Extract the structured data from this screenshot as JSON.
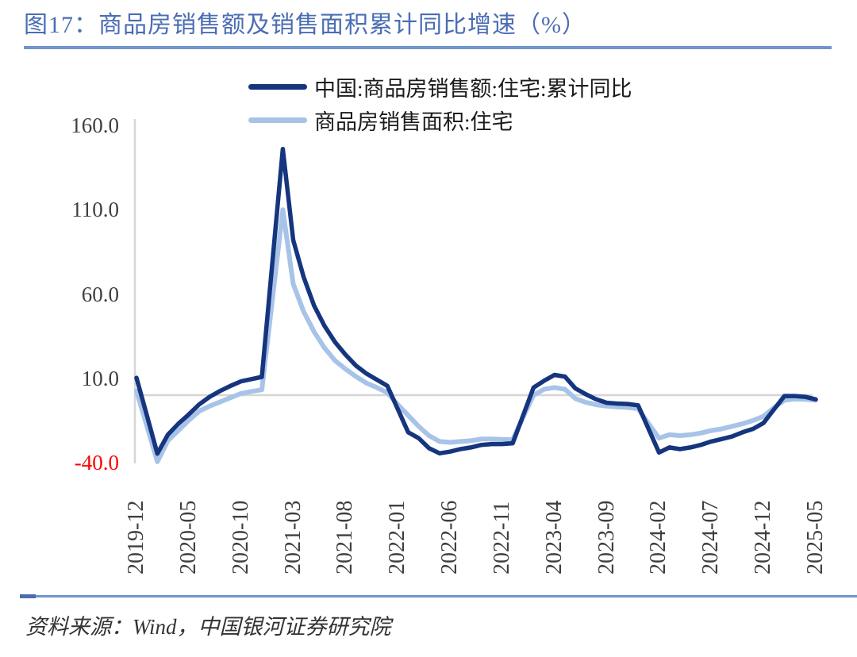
{
  "figure": {
    "title": "图17：商品房销售额及销售面积累计同比增速（%）",
    "source_label": "资料来源：Wind，中国银河证券研究院"
  },
  "colors": {
    "title_blue": "#4a6db3",
    "rule_blue": "#7094cc",
    "series_dark": "#15357e",
    "series_light": "#a8c3e8",
    "axis_gray": "#d6d6d6",
    "tick_text": "#3f3f3f",
    "negative_tick_red": "#fe0000"
  },
  "chart_data": {
    "type": "line",
    "title": "商品房销售额及销售面积累计同比增速（%）",
    "xlabel": "",
    "ylabel": "",
    "ylim": [
      -40,
      160
    ],
    "grid": "zero-line-only",
    "legend_position": "top-center",
    "x": [
      "2019-12",
      "2020-01",
      "2020-02",
      "2020-03",
      "2020-04",
      "2020-05",
      "2020-06",
      "2020-07",
      "2020-08",
      "2020-09",
      "2020-10",
      "2020-11",
      "2020-12",
      "2021-01",
      "2021-02",
      "2021-03",
      "2021-04",
      "2021-05",
      "2021-06",
      "2021-07",
      "2021-08",
      "2021-09",
      "2021-10",
      "2021-11",
      "2021-12",
      "2022-01",
      "2022-02",
      "2022-03",
      "2022-04",
      "2022-05",
      "2022-06",
      "2022-07",
      "2022-08",
      "2022-09",
      "2022-10",
      "2022-11",
      "2022-12",
      "2023-01",
      "2023-02",
      "2023-03",
      "2023-04",
      "2023-05",
      "2023-06",
      "2023-07",
      "2023-08",
      "2023-09",
      "2023-10",
      "2023-11",
      "2023-12",
      "2024-01",
      "2024-02",
      "2024-03",
      "2024-04",
      "2024-05",
      "2024-06",
      "2024-07",
      "2024-08",
      "2024-09",
      "2024-10",
      "2024-11",
      "2024-12",
      "2025-01",
      "2025-02",
      "2025-03",
      "2025-04",
      "2025-05"
    ],
    "x_tick_indices": [
      0,
      5,
      10,
      15,
      20,
      25,
      30,
      35,
      40,
      45,
      50,
      55,
      60,
      65
    ],
    "x_tick_labels": [
      "2019-12",
      "2020-05",
      "2020-10",
      "2021-03",
      "2021-08",
      "2022-01",
      "2022-06",
      "2022-11",
      "2023-04",
      "2023-09",
      "2024-02",
      "2024-07",
      "2024-12",
      "2025-05"
    ],
    "y_ticks": [
      160.0,
      110.0,
      60.0,
      10.0,
      -40.0
    ],
    "y_tick_labels": [
      "160.0",
      "110.0",
      "60.0",
      "10.0",
      "-40.0"
    ],
    "series": [
      {
        "name": "中国:商品房销售额:住宅:累计同比",
        "color": "#15357e",
        "values": [
          10.3,
          -12.2,
          -34.7,
          -23.5,
          -17.0,
          -11.5,
          -5.5,
          -1.0,
          2.5,
          5.5,
          8.2,
          9.5,
          10.8,
          78.4,
          146.0,
          92.0,
          70.0,
          53.0,
          41.0,
          31.5,
          24.0,
          17.5,
          12.8,
          9.2,
          5.5,
          -8.2,
          -22.0,
          -25.5,
          -31.5,
          -34.5,
          -33.5,
          -32.0,
          -31.0,
          -29.5,
          -29.0,
          -29.0,
          -28.5,
          -12.0,
          4.5,
          8.5,
          12.0,
          11.0,
          4.0,
          0.5,
          -2.5,
          -4.5,
          -5.0,
          -5.2,
          -6.0,
          -20.0,
          -34.0,
          -31.0,
          -32.0,
          -31.0,
          -29.5,
          -27.5,
          -26.0,
          -24.5,
          -22.0,
          -20.0,
          -16.5,
          -8.5,
          -0.5,
          -0.5,
          -1.0,
          -2.5
        ]
      },
      {
        "name": "商品房销售面积:住宅",
        "color": "#a8c3e8",
        "values": [
          2.5,
          -18.5,
          -39.5,
          -27.0,
          -21.0,
          -15.0,
          -9.5,
          -6.5,
          -4.0,
          -1.5,
          1.0,
          2.2,
          3.2,
          56.5,
          110.0,
          66.0,
          49.5,
          37.5,
          28.0,
          20.5,
          15.5,
          11.0,
          7.2,
          4.5,
          1.5,
          -5.5,
          -12.0,
          -18.5,
          -24.0,
          -27.5,
          -28.0,
          -27.5,
          -27.0,
          -26.0,
          -26.0,
          -26.2,
          -26.5,
          -13.0,
          0.0,
          3.5,
          4.5,
          3.5,
          -2.0,
          -4.3,
          -5.7,
          -6.5,
          -7.0,
          -7.3,
          -8.0,
          -16.8,
          -25.5,
          -23.5,
          -24.0,
          -23.5,
          -22.5,
          -21.0,
          -20.0,
          -18.5,
          -17.0,
          -15.0,
          -12.5,
          -7.5,
          -3.0,
          -2.3,
          -2.5,
          -3.0
        ]
      }
    ]
  }
}
